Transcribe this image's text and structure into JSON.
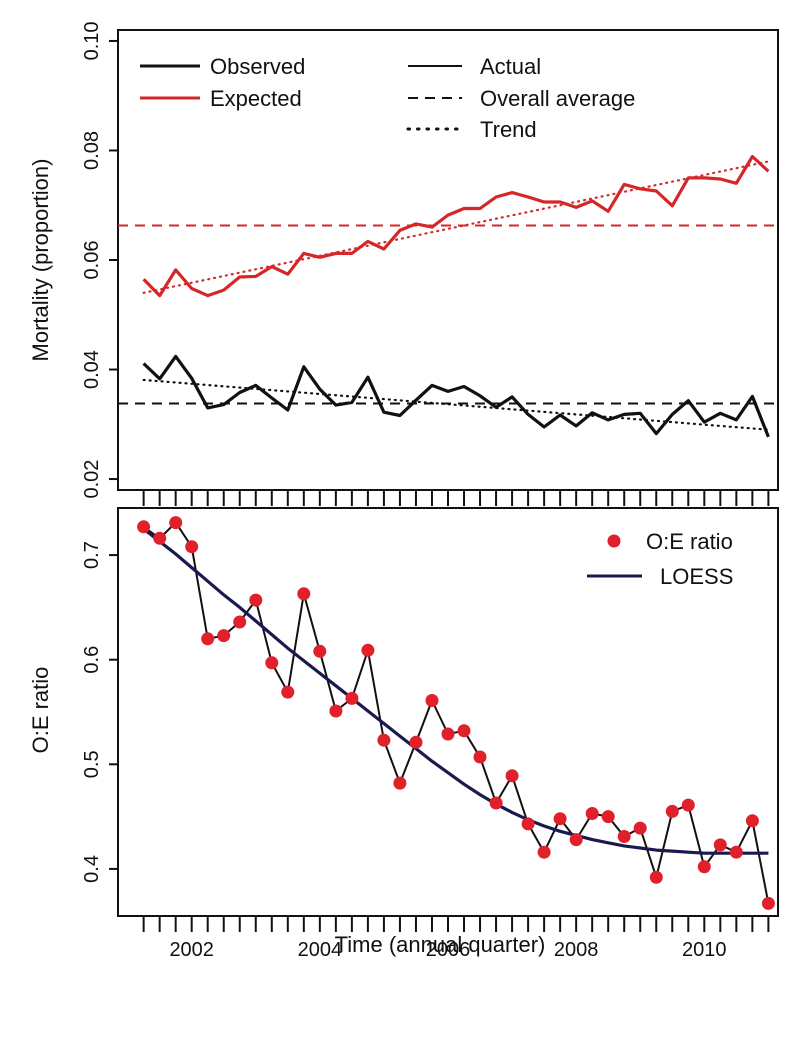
{
  "figure": {
    "xlabel": "Time (annual quarter)",
    "x_tick_labels": [
      "2002",
      "2004",
      "2006",
      "2008",
      "2010"
    ],
    "x_tick_years": [
      2002,
      2004,
      2006,
      2008,
      2010
    ]
  },
  "chart_data": [
    {
      "type": "line",
      "title": "",
      "ylabel": "Mortality (proportion)",
      "ylim": [
        0.018,
        0.102
      ],
      "xlim": [
        2000.85,
        2011.15
      ],
      "y_ticks": [
        0.02,
        0.04,
        0.06,
        0.08,
        0.1
      ],
      "y_tick_labels": [
        "0.02",
        "0.04",
        "0.06",
        "0.08",
        "0.10"
      ],
      "x": [
        2001.25,
        2001.5,
        2001.75,
        2002.0,
        2002.25,
        2002.5,
        2002.75,
        2003.0,
        2003.25,
        2003.5,
        2003.75,
        2004.0,
        2004.25,
        2004.5,
        2004.75,
        2005.0,
        2005.25,
        2005.5,
        2005.75,
        2006.0,
        2006.25,
        2006.5,
        2006.75,
        2007.0,
        2007.25,
        2007.5,
        2007.75,
        2008.0,
        2008.25,
        2008.5,
        2008.75,
        2009.0,
        2009.25,
        2009.5,
        2009.75,
        2010.0,
        2010.25,
        2010.5,
        2010.75,
        2011.0
      ],
      "series": [
        {
          "name": "Observed",
          "color": "#111111",
          "values": [
            0.0411,
            0.0383,
            0.0424,
            0.0384,
            0.033,
            0.0336,
            0.0358,
            0.0371,
            0.0348,
            0.0326,
            0.0405,
            0.0364,
            0.0335,
            0.034,
            0.0386,
            0.0322,
            0.0316,
            0.0344,
            0.0371,
            0.036,
            0.0369,
            0.0352,
            0.0331,
            0.035,
            0.0318,
            0.0295,
            0.0317,
            0.0297,
            0.0321,
            0.0308,
            0.0318,
            0.032,
            0.0283,
            0.0318,
            0.0343,
            0.0304,
            0.032,
            0.0308,
            0.0351,
            0.0277
          ],
          "overall_average": 0.0338,
          "trend": [
            0.0381,
            0.029
          ]
        },
        {
          "name": "Expected",
          "color": "#d62728",
          "values": [
            0.0565,
            0.0535,
            0.0582,
            0.0548,
            0.0535,
            0.0545,
            0.0569,
            0.057,
            0.0588,
            0.0574,
            0.0612,
            0.0605,
            0.0612,
            0.0612,
            0.0634,
            0.062,
            0.0654,
            0.0666,
            0.066,
            0.0682,
            0.0694,
            0.0694,
            0.0715,
            0.0723,
            0.0715,
            0.0706,
            0.0706,
            0.0696,
            0.0708,
            0.0689,
            0.0738,
            0.073,
            0.0726,
            0.0699,
            0.075,
            0.075,
            0.0748,
            0.074,
            0.0789,
            0.0762
          ],
          "overall_average": 0.0663,
          "trend": [
            0.054,
            0.078
          ]
        }
      ],
      "legend": {
        "series": [
          "Observed",
          "Expected"
        ],
        "styles": [
          "Actual",
          "Overall average",
          "Trend"
        ],
        "placement": "top"
      }
    },
    {
      "type": "scatter",
      "title": "",
      "ylabel": "O:E ratio",
      "ylim": [
        0.355,
        0.745
      ],
      "xlim": [
        2000.85,
        2011.15
      ],
      "y_ticks": [
        0.4,
        0.5,
        0.6,
        0.7
      ],
      "y_tick_labels": [
        "0.4",
        "0.5",
        "0.6",
        "0.7"
      ],
      "x": [
        2001.25,
        2001.5,
        2001.75,
        2002.0,
        2002.25,
        2002.5,
        2002.75,
        2003.0,
        2003.25,
        2003.5,
        2003.75,
        2004.0,
        2004.25,
        2004.5,
        2004.75,
        2005.0,
        2005.25,
        2005.5,
        2005.75,
        2006.0,
        2006.25,
        2006.5,
        2006.75,
        2007.0,
        2007.25,
        2007.5,
        2007.75,
        2008.0,
        2008.25,
        2008.5,
        2008.75,
        2009.0,
        2009.25,
        2009.5,
        2009.75,
        2010.0,
        2010.25,
        2010.5,
        2010.75,
        2011.0
      ],
      "series": [
        {
          "name": "O:E ratio",
          "color": "#e0202a",
          "values": [
            0.727,
            0.716,
            0.731,
            0.708,
            0.62,
            0.623,
            0.636,
            0.657,
            0.597,
            0.569,
            0.663,
            0.608,
            0.551,
            0.563,
            0.609,
            0.523,
            0.482,
            0.521,
            0.561,
            0.529,
            0.532,
            0.507,
            0.463,
            0.489,
            0.443,
            0.416,
            0.448,
            0.428,
            0.453,
            0.45,
            0.431,
            0.439,
            0.392,
            0.455,
            0.461,
            0.402,
            0.423,
            0.416,
            0.446,
            0.367
          ]
        },
        {
          "name": "LOESS",
          "color": "#1b1a4e",
          "values": [
            0.725,
            0.713,
            0.701,
            0.688,
            0.675,
            0.662,
            0.65,
            0.637,
            0.624,
            0.611,
            0.599,
            0.587,
            0.575,
            0.563,
            0.551,
            0.539,
            0.527,
            0.515,
            0.503,
            0.492,
            0.481,
            0.471,
            0.462,
            0.454,
            0.447,
            0.441,
            0.436,
            0.432,
            0.428,
            0.425,
            0.422,
            0.42,
            0.418,
            0.417,
            0.416,
            0.415,
            0.415,
            0.415,
            0.415,
            0.415
          ]
        }
      ],
      "legend": {
        "entries": [
          "O:E ratio",
          "LOESS"
        ],
        "placement": "top-right"
      }
    }
  ]
}
